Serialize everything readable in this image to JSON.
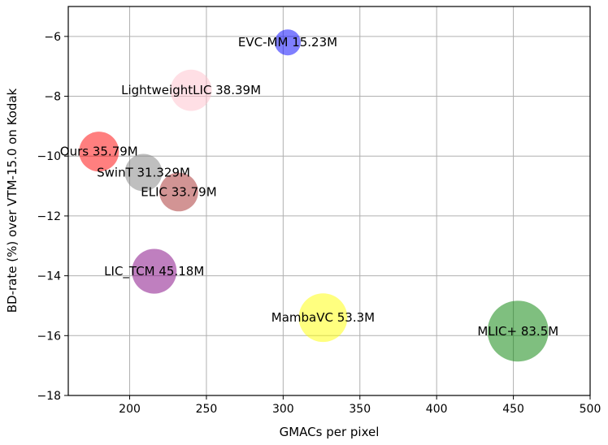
{
  "chart_data": {
    "type": "scatter",
    "title": "",
    "xlabel": "GMACs per pixel",
    "ylabel": "BD-rate (%) over VTM-15.0 on Kodak",
    "xlim": [
      160,
      500
    ],
    "ylim": [
      -18,
      -5
    ],
    "xticks": [
      200,
      250,
      300,
      350,
      400,
      450,
      500
    ],
    "yticks": [
      -6,
      -8,
      -10,
      -12,
      -14,
      -16,
      -18
    ],
    "grid": true,
    "points": [
      {
        "label": "EVC-MM 15.23M",
        "x": 303,
        "y": -6.2,
        "params": 15.23,
        "color": "#0000ff"
      },
      {
        "label": "LightweightLIC 38.39M",
        "x": 240,
        "y": -7.8,
        "params": 38.39,
        "color": "#ffc0cb"
      },
      {
        "label": "Ours 35.79M",
        "x": 180,
        "y": -9.85,
        "params": 35.79,
        "color": "#ff0000"
      },
      {
        "label": "SwinT 31.329M",
        "x": 209,
        "y": -10.55,
        "params": 31.329,
        "color": "#808080"
      },
      {
        "label": "ELIC 33.79M",
        "x": 232,
        "y": -11.2,
        "params": 33.79,
        "color": "#a52a2a"
      },
      {
        "label": "LIC_TCM 45.18M",
        "x": 216,
        "y": -13.85,
        "params": 45.18,
        "color": "#800080"
      },
      {
        "label": "MambaVC 53.3M",
        "x": 326,
        "y": -15.4,
        "params": 53.3,
        "color": "#ffff00"
      },
      {
        "label": "MLIC+ 83.5M",
        "x": 453,
        "y": -15.85,
        "params": 83.5,
        "color": "#008000"
      }
    ]
  }
}
